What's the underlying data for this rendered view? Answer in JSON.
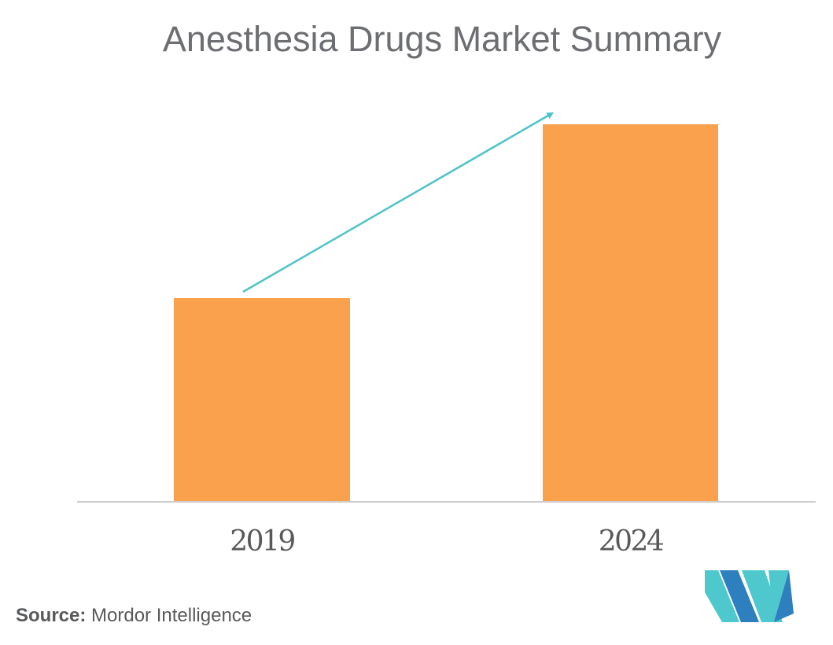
{
  "header": {
    "title": "Anesthesia Drugs Market Summary"
  },
  "chart_data": {
    "type": "bar",
    "title": "Anesthesia Drugs Market Summary",
    "categories": [
      "2019",
      "2024"
    ],
    "values": [
      54,
      100
    ],
    "value_note": "No numeric axis shown; values are relative bar heights in % of tallest bar",
    "xlabel": "",
    "ylabel": "",
    "ylim": [
      0,
      100
    ],
    "grid": false,
    "legend": "none",
    "bar_color": "#FAA14D",
    "annotations": [
      {
        "type": "growth-arrow",
        "from": "2019",
        "to": "2024",
        "color": "#4EC3C9"
      }
    ]
  },
  "footer": {
    "source_label": "Source:",
    "source_text": "Mordor Intelligence"
  },
  "colors": {
    "background": "#FFFFFF",
    "bar": "#FAA14D",
    "arrow": "#4EC3C9",
    "axis_line": "#CDCDCD",
    "title_text": "#6D6E71",
    "axis_label_text": "#58595B",
    "source_text": "#58595B",
    "logo_teal": "#4EC8CD",
    "logo_blue": "#2E7FBE"
  }
}
